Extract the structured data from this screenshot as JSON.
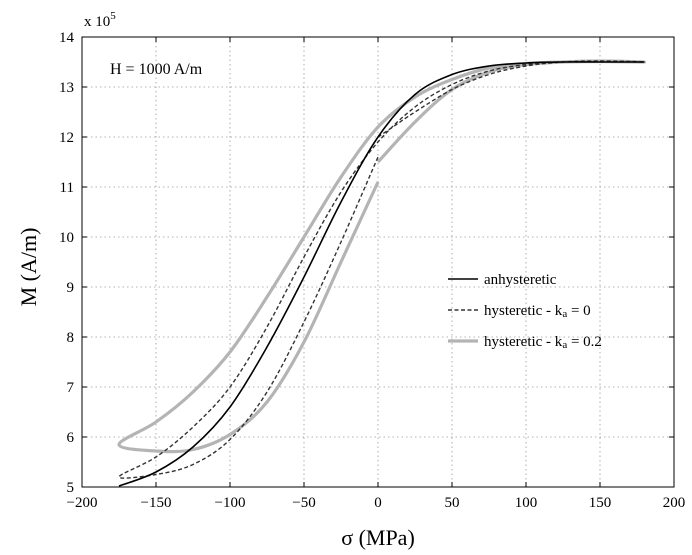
{
  "chart_data": {
    "type": "line",
    "title": "",
    "annotation": "H = 1000 A/m",
    "xlabel": "σ (MPa)",
    "ylabel": "M (A/m)",
    "y_multiplier": "x 10",
    "y_multiplier_exp": "5",
    "xlim": [
      -200,
      200
    ],
    "ylim": [
      5,
      14
    ],
    "xticks": [
      -200,
      -150,
      -100,
      -50,
      0,
      50,
      100,
      150,
      200
    ],
    "yticks": [
      5,
      6,
      7,
      8,
      9,
      10,
      11,
      12,
      13,
      14
    ],
    "xtick_labels": [
      "−200",
      "−150",
      "−100",
      "−50",
      "0",
      "50",
      "100",
      "150",
      "200"
    ],
    "ytick_labels": [
      "5",
      "6",
      "7",
      "8",
      "9",
      "10",
      "11",
      "12",
      "13",
      "14"
    ],
    "grid": true,
    "legend_position": "middle-right",
    "legend": [
      {
        "key": "anhysteretic",
        "label": "anhysteretic"
      },
      {
        "key": "hyst0",
        "label": "hysteretic - k",
        "sub": "a",
        "suffix": " = 0"
      },
      {
        "key": "hyst02",
        "label": "hysteretic - k",
        "sub": "a",
        "suffix": " = 0.2"
      }
    ],
    "series": [
      {
        "key": "anhysteretic",
        "color": "#000000",
        "style": "solid",
        "x": [
          -175,
          -150,
          -125,
          -100,
          -75,
          -50,
          -25,
          0,
          25,
          50,
          75,
          100,
          125,
          150,
          180
        ],
        "y": [
          5.02,
          5.3,
          5.8,
          6.6,
          7.8,
          9.2,
          10.7,
          12.0,
          12.85,
          13.25,
          13.42,
          13.48,
          13.5,
          13.5,
          13.5
        ]
      },
      {
        "key": "hyst0",
        "color": "#333333",
        "style": "dashed",
        "x": [
          0,
          10,
          25,
          50,
          75,
          100,
          125,
          150,
          180,
          150,
          125,
          100,
          75,
          50,
          25,
          0,
          -25,
          -50,
          -75,
          -100,
          -125,
          -150,
          -175,
          -150,
          -125,
          -100,
          -75,
          -50,
          -25,
          0
        ],
        "y": [
          12.0,
          12.2,
          12.5,
          12.95,
          13.25,
          13.42,
          13.5,
          13.52,
          13.5,
          13.51,
          13.5,
          13.45,
          13.32,
          13.05,
          12.6,
          11.9,
          10.9,
          9.6,
          8.2,
          7.0,
          6.2,
          5.6,
          5.2,
          5.25,
          5.45,
          5.95,
          6.9,
          8.3,
          9.9,
          11.6
        ]
      },
      {
        "key": "hyst02",
        "color": "#b4b4b4",
        "style": "solid",
        "x": [
          0,
          25,
          50,
          75,
          100,
          125,
          150,
          180,
          150,
          125,
          100,
          75,
          50,
          25,
          0,
          -25,
          -50,
          -75,
          -100,
          -125,
          -150,
          -175,
          -150,
          -125,
          -100,
          -75,
          -50,
          -25,
          0
        ],
        "y": [
          11.5,
          12.3,
          12.95,
          13.3,
          13.45,
          13.5,
          13.52,
          13.5,
          13.51,
          13.5,
          13.47,
          13.38,
          13.15,
          12.8,
          12.2,
          11.2,
          10.0,
          8.8,
          7.7,
          6.9,
          6.3,
          5.85,
          5.72,
          5.75,
          6.05,
          6.7,
          7.9,
          9.5,
          11.1
        ]
      }
    ]
  }
}
